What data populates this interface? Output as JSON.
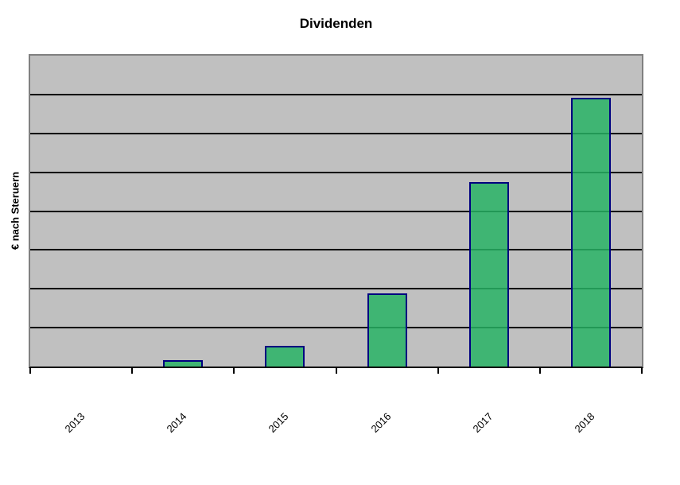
{
  "chart_data": {
    "type": "bar",
    "title": "Dividenden",
    "ylabel": "€ nach Steruern",
    "xlabel": "",
    "categories": [
      "2013",
      "2014",
      "2015",
      "2016",
      "2017",
      "2018"
    ],
    "values": [
      0,
      0.16,
      0.53,
      1.88,
      4.75,
      6.92
    ],
    "value_unit": "gridline-intervals (y axis shows no numeric tick labels)",
    "ylim": [
      0,
      8
    ],
    "y_gridline_intervals": 8,
    "grid": "horizontal",
    "legend": "none",
    "x_label_rotation_deg": -45,
    "colors": {
      "bar_fill": "#3EB476",
      "bar_border": "#000080",
      "plot_background": "#C0C0C0",
      "gridline": "#000000",
      "plot_frame": "#808080",
      "axis_line": "#000000",
      "page_background": "#FFFFFF",
      "text": "#000000"
    }
  }
}
